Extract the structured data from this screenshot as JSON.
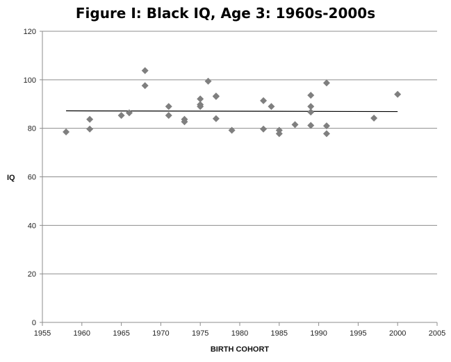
{
  "chart_data": {
    "type": "scatter",
    "title": "Figure I: Black IQ, Age 3: 1960s-2000s",
    "xlabel": "BIRTH COHORT",
    "ylabel": "IQ",
    "xlim": [
      1955,
      2005
    ],
    "ylim": [
      0,
      120
    ],
    "xticks": [
      "1955",
      "1960",
      "1965",
      "1970",
      "1975",
      "1980",
      "1985",
      "1990",
      "1995",
      "2000",
      "2005"
    ],
    "yticks": [
      "0",
      "20",
      "40",
      "60",
      "80",
      "100",
      "120"
    ],
    "grid": true,
    "marker_color": "#7f7f7f",
    "trendline": {
      "x": [
        1958,
        2000
      ],
      "y": [
        87.2,
        86.9
      ],
      "color": "#000000"
    },
    "points": [
      {
        "x": 1958,
        "y": 78.5
      },
      {
        "x": 1961,
        "y": 83.7
      },
      {
        "x": 1961,
        "y": 79.7
      },
      {
        "x": 1965,
        "y": 85.3
      },
      {
        "x": 1966,
        "y": 86.4
      },
      {
        "x": 1968,
        "y": 103.8
      },
      {
        "x": 1968,
        "y": 97.6
      },
      {
        "x": 1971,
        "y": 89.0
      },
      {
        "x": 1971,
        "y": 85.3
      },
      {
        "x": 1973,
        "y": 83.7
      },
      {
        "x": 1973,
        "y": 82.7
      },
      {
        "x": 1975,
        "y": 92.1
      },
      {
        "x": 1975,
        "y": 89.8
      },
      {
        "x": 1975,
        "y": 89.0
      },
      {
        "x": 1976,
        "y": 99.4
      },
      {
        "x": 1977,
        "y": 93.3
      },
      {
        "x": 1977,
        "y": 93.1
      },
      {
        "x": 1977,
        "y": 84.0
      },
      {
        "x": 1979,
        "y": 79.2
      },
      {
        "x": 1983,
        "y": 91.4
      },
      {
        "x": 1983,
        "y": 79.7
      },
      {
        "x": 1984,
        "y": 89.0
      },
      {
        "x": 1985,
        "y": 79.2
      },
      {
        "x": 1985,
        "y": 77.8
      },
      {
        "x": 1987,
        "y": 81.5
      },
      {
        "x": 1989,
        "y": 93.6
      },
      {
        "x": 1989,
        "y": 89.0
      },
      {
        "x": 1989,
        "y": 86.7
      },
      {
        "x": 1989,
        "y": 81.2
      },
      {
        "x": 1991,
        "y": 98.7
      },
      {
        "x": 1991,
        "y": 81.0
      },
      {
        "x": 1991,
        "y": 77.8
      },
      {
        "x": 1997,
        "y": 84.2
      },
      {
        "x": 2000,
        "y": 94.0
      }
    ]
  }
}
